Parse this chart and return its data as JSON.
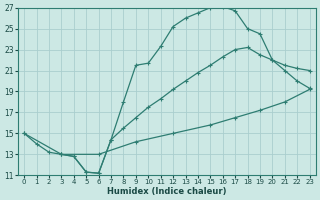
{
  "xlabel": "Humidex (Indice chaleur)",
  "bg_color": "#cce8e4",
  "grid_color": "#aacece",
  "line_color": "#2e7d72",
  "xlim": [
    -0.5,
    23.5
  ],
  "ylim": [
    11,
    27
  ],
  "xticks": [
    0,
    1,
    2,
    3,
    4,
    5,
    6,
    7,
    8,
    9,
    10,
    11,
    12,
    13,
    14,
    15,
    16,
    17,
    18,
    19,
    20,
    21,
    22,
    23
  ],
  "yticks": [
    11,
    13,
    15,
    17,
    19,
    21,
    23,
    25,
    27
  ],
  "line1_x": [
    0,
    1,
    2,
    3,
    4,
    5,
    6,
    7,
    8,
    9,
    10,
    11,
    12,
    13,
    14,
    15,
    16,
    17,
    18,
    19,
    20,
    21,
    22,
    23
  ],
  "line1_y": [
    15,
    14,
    13.2,
    13,
    12.8,
    11.3,
    11.2,
    14.4,
    18.0,
    21.5,
    21.7,
    23.3,
    25.2,
    26.0,
    26.5,
    27.0,
    27.1,
    26.7,
    25.0,
    24.5,
    22.0,
    21.0,
    20.0,
    19.3
  ],
  "line2_x": [
    3,
    4,
    5,
    6,
    7,
    8,
    9,
    10,
    11,
    12,
    13,
    14,
    15,
    16,
    17,
    18,
    19,
    20,
    21,
    22,
    23
  ],
  "line2_y": [
    13,
    12.8,
    11.3,
    11.2,
    14.4,
    15.5,
    16.5,
    17.5,
    18.3,
    19.2,
    20.0,
    20.8,
    21.5,
    22.3,
    23.0,
    23.2,
    22.5,
    22.0,
    21.5,
    21.2,
    21.0
  ],
  "line3_x": [
    0,
    3,
    6,
    9,
    12,
    15,
    17,
    19,
    21,
    23
  ],
  "line3_y": [
    15,
    13,
    13.0,
    14.2,
    15.0,
    15.8,
    16.5,
    17.2,
    18.0,
    19.2
  ]
}
